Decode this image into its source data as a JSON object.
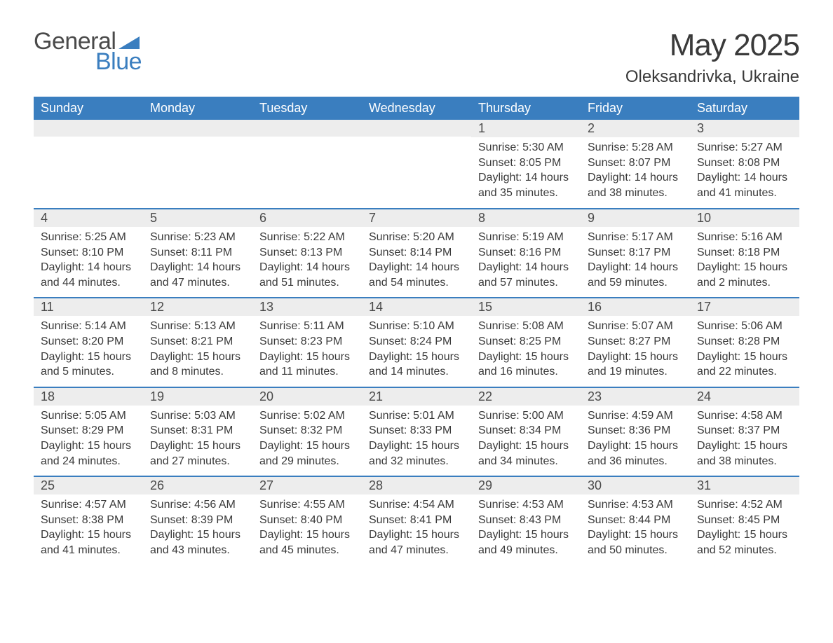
{
  "logo": {
    "text_general": "General",
    "text_blue": "Blue",
    "icon_color": "#3a7ebf"
  },
  "header": {
    "month_title": "May 2025",
    "location": "Oleksandrivka, Ukraine"
  },
  "colors": {
    "header_bar": "#3a7ebf",
    "row_divider": "#3a7ebf",
    "day_number_bg": "#ededed",
    "text": "#3a3a3a",
    "bg": "#ffffff"
  },
  "weekdays": [
    "Sunday",
    "Monday",
    "Tuesday",
    "Wednesday",
    "Thursday",
    "Friday",
    "Saturday"
  ],
  "weeks": [
    [
      {
        "empty": true
      },
      {
        "empty": true
      },
      {
        "empty": true
      },
      {
        "empty": true
      },
      {
        "day": "1",
        "sunrise": "Sunrise: 5:30 AM",
        "sunset": "Sunset: 8:05 PM",
        "daylight1": "Daylight: 14 hours",
        "daylight2": "and 35 minutes."
      },
      {
        "day": "2",
        "sunrise": "Sunrise: 5:28 AM",
        "sunset": "Sunset: 8:07 PM",
        "daylight1": "Daylight: 14 hours",
        "daylight2": "and 38 minutes."
      },
      {
        "day": "3",
        "sunrise": "Sunrise: 5:27 AM",
        "sunset": "Sunset: 8:08 PM",
        "daylight1": "Daylight: 14 hours",
        "daylight2": "and 41 minutes."
      }
    ],
    [
      {
        "day": "4",
        "sunrise": "Sunrise: 5:25 AM",
        "sunset": "Sunset: 8:10 PM",
        "daylight1": "Daylight: 14 hours",
        "daylight2": "and 44 minutes."
      },
      {
        "day": "5",
        "sunrise": "Sunrise: 5:23 AM",
        "sunset": "Sunset: 8:11 PM",
        "daylight1": "Daylight: 14 hours",
        "daylight2": "and 47 minutes."
      },
      {
        "day": "6",
        "sunrise": "Sunrise: 5:22 AM",
        "sunset": "Sunset: 8:13 PM",
        "daylight1": "Daylight: 14 hours",
        "daylight2": "and 51 minutes."
      },
      {
        "day": "7",
        "sunrise": "Sunrise: 5:20 AM",
        "sunset": "Sunset: 8:14 PM",
        "daylight1": "Daylight: 14 hours",
        "daylight2": "and 54 minutes."
      },
      {
        "day": "8",
        "sunrise": "Sunrise: 5:19 AM",
        "sunset": "Sunset: 8:16 PM",
        "daylight1": "Daylight: 14 hours",
        "daylight2": "and 57 minutes."
      },
      {
        "day": "9",
        "sunrise": "Sunrise: 5:17 AM",
        "sunset": "Sunset: 8:17 PM",
        "daylight1": "Daylight: 14 hours",
        "daylight2": "and 59 minutes."
      },
      {
        "day": "10",
        "sunrise": "Sunrise: 5:16 AM",
        "sunset": "Sunset: 8:18 PM",
        "daylight1": "Daylight: 15 hours",
        "daylight2": "and 2 minutes."
      }
    ],
    [
      {
        "day": "11",
        "sunrise": "Sunrise: 5:14 AM",
        "sunset": "Sunset: 8:20 PM",
        "daylight1": "Daylight: 15 hours",
        "daylight2": "and 5 minutes."
      },
      {
        "day": "12",
        "sunrise": "Sunrise: 5:13 AM",
        "sunset": "Sunset: 8:21 PM",
        "daylight1": "Daylight: 15 hours",
        "daylight2": "and 8 minutes."
      },
      {
        "day": "13",
        "sunrise": "Sunrise: 5:11 AM",
        "sunset": "Sunset: 8:23 PM",
        "daylight1": "Daylight: 15 hours",
        "daylight2": "and 11 minutes."
      },
      {
        "day": "14",
        "sunrise": "Sunrise: 5:10 AM",
        "sunset": "Sunset: 8:24 PM",
        "daylight1": "Daylight: 15 hours",
        "daylight2": "and 14 minutes."
      },
      {
        "day": "15",
        "sunrise": "Sunrise: 5:08 AM",
        "sunset": "Sunset: 8:25 PM",
        "daylight1": "Daylight: 15 hours",
        "daylight2": "and 16 minutes."
      },
      {
        "day": "16",
        "sunrise": "Sunrise: 5:07 AM",
        "sunset": "Sunset: 8:27 PM",
        "daylight1": "Daylight: 15 hours",
        "daylight2": "and 19 minutes."
      },
      {
        "day": "17",
        "sunrise": "Sunrise: 5:06 AM",
        "sunset": "Sunset: 8:28 PM",
        "daylight1": "Daylight: 15 hours",
        "daylight2": "and 22 minutes."
      }
    ],
    [
      {
        "day": "18",
        "sunrise": "Sunrise: 5:05 AM",
        "sunset": "Sunset: 8:29 PM",
        "daylight1": "Daylight: 15 hours",
        "daylight2": "and 24 minutes."
      },
      {
        "day": "19",
        "sunrise": "Sunrise: 5:03 AM",
        "sunset": "Sunset: 8:31 PM",
        "daylight1": "Daylight: 15 hours",
        "daylight2": "and 27 minutes."
      },
      {
        "day": "20",
        "sunrise": "Sunrise: 5:02 AM",
        "sunset": "Sunset: 8:32 PM",
        "daylight1": "Daylight: 15 hours",
        "daylight2": "and 29 minutes."
      },
      {
        "day": "21",
        "sunrise": "Sunrise: 5:01 AM",
        "sunset": "Sunset: 8:33 PM",
        "daylight1": "Daylight: 15 hours",
        "daylight2": "and 32 minutes."
      },
      {
        "day": "22",
        "sunrise": "Sunrise: 5:00 AM",
        "sunset": "Sunset: 8:34 PM",
        "daylight1": "Daylight: 15 hours",
        "daylight2": "and 34 minutes."
      },
      {
        "day": "23",
        "sunrise": "Sunrise: 4:59 AM",
        "sunset": "Sunset: 8:36 PM",
        "daylight1": "Daylight: 15 hours",
        "daylight2": "and 36 minutes."
      },
      {
        "day": "24",
        "sunrise": "Sunrise: 4:58 AM",
        "sunset": "Sunset: 8:37 PM",
        "daylight1": "Daylight: 15 hours",
        "daylight2": "and 38 minutes."
      }
    ],
    [
      {
        "day": "25",
        "sunrise": "Sunrise: 4:57 AM",
        "sunset": "Sunset: 8:38 PM",
        "daylight1": "Daylight: 15 hours",
        "daylight2": "and 41 minutes."
      },
      {
        "day": "26",
        "sunrise": "Sunrise: 4:56 AM",
        "sunset": "Sunset: 8:39 PM",
        "daylight1": "Daylight: 15 hours",
        "daylight2": "and 43 minutes."
      },
      {
        "day": "27",
        "sunrise": "Sunrise: 4:55 AM",
        "sunset": "Sunset: 8:40 PM",
        "daylight1": "Daylight: 15 hours",
        "daylight2": "and 45 minutes."
      },
      {
        "day": "28",
        "sunrise": "Sunrise: 4:54 AM",
        "sunset": "Sunset: 8:41 PM",
        "daylight1": "Daylight: 15 hours",
        "daylight2": "and 47 minutes."
      },
      {
        "day": "29",
        "sunrise": "Sunrise: 4:53 AM",
        "sunset": "Sunset: 8:43 PM",
        "daylight1": "Daylight: 15 hours",
        "daylight2": "and 49 minutes."
      },
      {
        "day": "30",
        "sunrise": "Sunrise: 4:53 AM",
        "sunset": "Sunset: 8:44 PM",
        "daylight1": "Daylight: 15 hours",
        "daylight2": "and 50 minutes."
      },
      {
        "day": "31",
        "sunrise": "Sunrise: 4:52 AM",
        "sunset": "Sunset: 8:45 PM",
        "daylight1": "Daylight: 15 hours",
        "daylight2": "and 52 minutes."
      }
    ]
  ]
}
